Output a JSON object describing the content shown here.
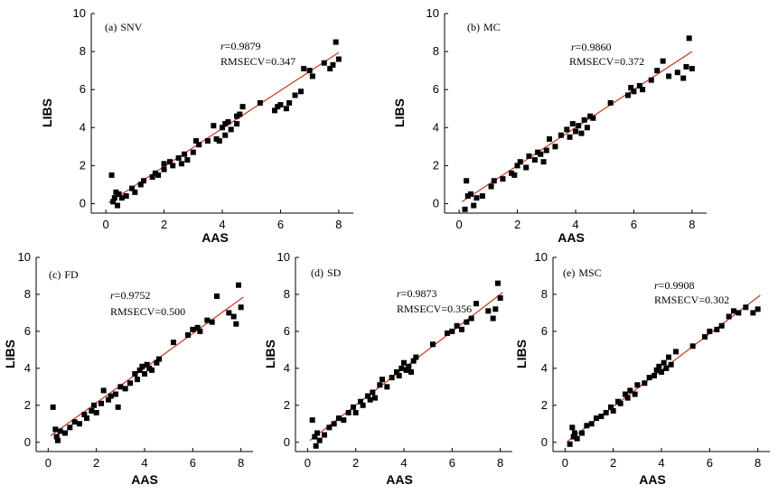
{
  "chart_data": [
    {
      "type": "scatter",
      "panel_label": "(a)",
      "method": "SNV",
      "r_prefix": "r",
      "r_value": "=0.9879",
      "rmsecv": "RMSECV=0.347",
      "xlabel": "AAS",
      "ylabel": "LIBS",
      "xlim": [
        -0.5,
        8.5
      ],
      "ylim": [
        -0.5,
        10
      ],
      "xticks": [
        "0",
        "2",
        "4",
        "6",
        "8"
      ],
      "yticks": [
        "0",
        "2",
        "4",
        "6",
        "8",
        "10"
      ],
      "fit_line": {
        "x": [
          0.1,
          8.0
        ],
        "y": [
          0.05,
          7.95
        ],
        "color": "#d0311f"
      },
      "points": [
        [
          0.2,
          1.5
        ],
        [
          0.25,
          0.1
        ],
        [
          0.3,
          0.3
        ],
        [
          0.35,
          0.6
        ],
        [
          0.4,
          -0.1
        ],
        [
          0.45,
          0.5
        ],
        [
          0.55,
          0.3
        ],
        [
          0.7,
          0.4
        ],
        [
          0.9,
          0.8
        ],
        [
          1.0,
          0.6
        ],
        [
          1.2,
          1.0
        ],
        [
          1.3,
          1.2
        ],
        [
          1.6,
          1.4
        ],
        [
          1.7,
          1.6
        ],
        [
          1.8,
          1.5
        ],
        [
          2.0,
          1.8
        ],
        [
          2.0,
          2.1
        ],
        [
          2.2,
          2.2
        ],
        [
          2.3,
          2.0
        ],
        [
          2.5,
          2.4
        ],
        [
          2.6,
          2.1
        ],
        [
          2.7,
          2.6
        ],
        [
          2.8,
          2.3
        ],
        [
          3.0,
          2.7
        ],
        [
          3.1,
          3.3
        ],
        [
          3.2,
          3.1
        ],
        [
          3.5,
          3.3
        ],
        [
          3.7,
          4.1
        ],
        [
          3.8,
          3.4
        ],
        [
          3.9,
          3.3
        ],
        [
          4.0,
          4.0
        ],
        [
          4.1,
          4.2
        ],
        [
          4.1,
          3.6
        ],
        [
          4.2,
          4.3
        ],
        [
          4.3,
          3.9
        ],
        [
          4.5,
          4.2
        ],
        [
          4.5,
          4.6
        ],
        [
          4.6,
          4.7
        ],
        [
          4.7,
          5.1
        ],
        [
          5.3,
          5.3
        ],
        [
          5.8,
          4.9
        ],
        [
          5.9,
          5.1
        ],
        [
          6.0,
          5.2
        ],
        [
          6.2,
          5.0
        ],
        [
          6.3,
          5.3
        ],
        [
          6.5,
          5.7
        ],
        [
          6.7,
          5.9
        ],
        [
          6.8,
          7.1
        ],
        [
          7.0,
          7.0
        ],
        [
          7.1,
          6.7
        ],
        [
          7.5,
          7.4
        ],
        [
          7.7,
          7.1
        ],
        [
          7.8,
          7.3
        ],
        [
          7.9,
          8.5
        ],
        [
          8.0,
          7.6
        ]
      ]
    },
    {
      "type": "scatter",
      "panel_label": "(b)",
      "method": "MC",
      "r_prefix": "r",
      "r_value": "=0.9860",
      "rmsecv": "RMSECV=0.372",
      "xlabel": "AAS",
      "ylabel": "LIBS",
      "xlim": [
        -0.5,
        8.5
      ],
      "ylim": [
        -0.5,
        10
      ],
      "xticks": [
        "0",
        "2",
        "4",
        "6",
        "8"
      ],
      "yticks": [
        "0",
        "2",
        "4",
        "6",
        "8",
        "10"
      ],
      "fit_line": {
        "x": [
          0.1,
          8.0
        ],
        "y": [
          0.1,
          8.0
        ],
        "color": "#d0311f"
      },
      "points": [
        [
          0.2,
          -0.3
        ],
        [
          0.25,
          1.2
        ],
        [
          0.3,
          0.4
        ],
        [
          0.4,
          0.5
        ],
        [
          0.5,
          -0.1
        ],
        [
          0.6,
          0.3
        ],
        [
          0.8,
          0.4
        ],
        [
          1.1,
          0.9
        ],
        [
          1.2,
          1.2
        ],
        [
          1.5,
          1.3
        ],
        [
          1.8,
          1.6
        ],
        [
          1.9,
          1.5
        ],
        [
          2.0,
          2.0
        ],
        [
          2.1,
          2.2
        ],
        [
          2.3,
          1.9
        ],
        [
          2.4,
          2.5
        ],
        [
          2.6,
          2.3
        ],
        [
          2.7,
          2.7
        ],
        [
          2.8,
          2.6
        ],
        [
          2.9,
          2.2
        ],
        [
          3.0,
          2.8
        ],
        [
          3.1,
          3.4
        ],
        [
          3.3,
          3.0
        ],
        [
          3.5,
          3.6
        ],
        [
          3.7,
          3.9
        ],
        [
          3.8,
          3.5
        ],
        [
          3.9,
          4.2
        ],
        [
          4.0,
          3.8
        ],
        [
          4.1,
          4.1
        ],
        [
          4.2,
          3.7
        ],
        [
          4.3,
          4.4
        ],
        [
          4.4,
          4.0
        ],
        [
          4.5,
          4.6
        ],
        [
          4.6,
          4.5
        ],
        [
          5.2,
          5.3
        ],
        [
          5.8,
          5.7
        ],
        [
          5.9,
          6.1
        ],
        [
          6.0,
          5.9
        ],
        [
          6.2,
          6.2
        ],
        [
          6.3,
          6.0
        ],
        [
          6.6,
          6.5
        ],
        [
          6.8,
          7.0
        ],
        [
          7.0,
          7.5
        ],
        [
          7.2,
          6.7
        ],
        [
          7.5,
          6.9
        ],
        [
          7.7,
          6.6
        ],
        [
          7.8,
          7.2
        ],
        [
          7.9,
          8.7
        ],
        [
          8.0,
          7.1
        ]
      ]
    },
    {
      "type": "scatter",
      "panel_label": "(c)",
      "method": "FD",
      "r_prefix": "r",
      "r_value": "=0.9752",
      "rmsecv": "RMSECV=0.500",
      "xlabel": "AAS",
      "ylabel": "LIBS",
      "xlim": [
        -0.5,
        8.5
      ],
      "ylim": [
        -0.5,
        10
      ],
      "xticks": [
        "0",
        "2",
        "4",
        "6",
        "8"
      ],
      "yticks": [
        "0",
        "2",
        "4",
        "6",
        "8",
        "10"
      ],
      "fit_line": {
        "x": [
          0.1,
          8.1
        ],
        "y": [
          0.35,
          7.85
        ],
        "color": "#d0311f"
      },
      "points": [
        [
          0.2,
          1.9
        ],
        [
          0.3,
          0.7
        ],
        [
          0.35,
          0.3
        ],
        [
          0.4,
          0.1
        ],
        [
          0.5,
          0.6
        ],
        [
          0.7,
          0.5
        ],
        [
          0.9,
          0.8
        ],
        [
          1.1,
          1.1
        ],
        [
          1.3,
          1.0
        ],
        [
          1.5,
          1.5
        ],
        [
          1.6,
          1.3
        ],
        [
          1.8,
          1.7
        ],
        [
          1.9,
          2.0
        ],
        [
          2.0,
          1.6
        ],
        [
          2.2,
          2.1
        ],
        [
          2.3,
          2.8
        ],
        [
          2.5,
          2.3
        ],
        [
          2.6,
          2.5
        ],
        [
          2.8,
          2.6
        ],
        [
          2.9,
          1.9
        ],
        [
          3.0,
          3.0
        ],
        [
          3.2,
          2.9
        ],
        [
          3.4,
          3.2
        ],
        [
          3.6,
          3.7
        ],
        [
          3.7,
          3.4
        ],
        [
          3.8,
          3.9
        ],
        [
          3.9,
          4.1
        ],
        [
          4.0,
          3.7
        ],
        [
          4.1,
          4.2
        ],
        [
          4.2,
          4.0
        ],
        [
          4.3,
          3.9
        ],
        [
          4.5,
          4.3
        ],
        [
          4.6,
          4.5
        ],
        [
          5.2,
          5.4
        ],
        [
          5.8,
          5.8
        ],
        [
          6.0,
          6.1
        ],
        [
          6.2,
          6.2
        ],
        [
          6.3,
          6.0
        ],
        [
          6.6,
          6.6
        ],
        [
          6.8,
          6.5
        ],
        [
          7.0,
          7.9
        ],
        [
          7.5,
          7.0
        ],
        [
          7.7,
          6.8
        ],
        [
          7.8,
          6.4
        ],
        [
          7.9,
          8.5
        ],
        [
          8.0,
          7.3
        ]
      ]
    },
    {
      "type": "scatter",
      "panel_label": "(d)",
      "method": "SD",
      "r_prefix": "r",
      "r_value": "=0.9873",
      "rmsecv": "RMSECV=0.356",
      "xlabel": "AAS",
      "ylabel": "LIBS",
      "xlim": [
        -0.5,
        8.5
      ],
      "ylim": [
        -0.5,
        10
      ],
      "xticks": [
        "0",
        "2",
        "4",
        "6",
        "8"
      ],
      "yticks": [
        "0",
        "2",
        "4",
        "6",
        "8",
        "10"
      ],
      "fit_line": {
        "x": [
          0.1,
          8.1
        ],
        "y": [
          0.1,
          8.1
        ],
        "color": "#d0311f"
      },
      "points": [
        [
          0.2,
          1.2
        ],
        [
          0.3,
          0.3
        ],
        [
          0.35,
          -0.2
        ],
        [
          0.4,
          0.5
        ],
        [
          0.5,
          0.1
        ],
        [
          0.7,
          0.4
        ],
        [
          0.9,
          0.8
        ],
        [
          1.1,
          1.0
        ],
        [
          1.3,
          1.3
        ],
        [
          1.5,
          1.2
        ],
        [
          1.7,
          1.6
        ],
        [
          1.9,
          1.9
        ],
        [
          2.0,
          1.6
        ],
        [
          2.2,
          2.2
        ],
        [
          2.3,
          2.0
        ],
        [
          2.5,
          2.5
        ],
        [
          2.6,
          2.3
        ],
        [
          2.7,
          2.7
        ],
        [
          2.8,
          2.4
        ],
        [
          3.0,
          3.1
        ],
        [
          3.1,
          3.4
        ],
        [
          3.3,
          3.0
        ],
        [
          3.5,
          3.5
        ],
        [
          3.7,
          3.8
        ],
        [
          3.8,
          3.6
        ],
        [
          3.9,
          4.0
        ],
        [
          4.0,
          4.3
        ],
        [
          4.1,
          3.9
        ],
        [
          4.2,
          4.1
        ],
        [
          4.3,
          3.8
        ],
        [
          4.4,
          4.4
        ],
        [
          4.5,
          4.6
        ],
        [
          5.2,
          5.3
        ],
        [
          5.8,
          5.9
        ],
        [
          6.0,
          6.0
        ],
        [
          6.2,
          6.3
        ],
        [
          6.4,
          6.1
        ],
        [
          6.6,
          6.5
        ],
        [
          6.8,
          6.7
        ],
        [
          7.0,
          7.5
        ],
        [
          7.5,
          7.1
        ],
        [
          7.7,
          6.7
        ],
        [
          7.8,
          7.2
        ],
        [
          7.9,
          8.6
        ],
        [
          8.0,
          7.8
        ]
      ]
    },
    {
      "type": "scatter",
      "panel_label": "(e)",
      "method": "MSC",
      "r_prefix": "r",
      "r_value": "=0.9908",
      "rmsecv": "RMSECV=0.302",
      "xlabel": "AAS",
      "ylabel": "LIBS",
      "xlim": [
        -0.5,
        8.5
      ],
      "ylim": [
        -0.5,
        10
      ],
      "xticks": [
        "0",
        "2",
        "4",
        "6",
        "8"
      ],
      "yticks": [
        "0",
        "2",
        "4",
        "6",
        "8",
        "10"
      ],
      "fit_line": {
        "x": [
          0.1,
          8.1
        ],
        "y": [
          0.05,
          7.95
        ],
        "color": "#d0311f"
      },
      "points": [
        [
          0.2,
          -0.1
        ],
        [
          0.3,
          0.8
        ],
        [
          0.35,
          0.3
        ],
        [
          0.4,
          0.5
        ],
        [
          0.5,
          0.2
        ],
        [
          0.7,
          0.5
        ],
        [
          0.9,
          0.9
        ],
        [
          1.1,
          1.0
        ],
        [
          1.3,
          1.3
        ],
        [
          1.5,
          1.4
        ],
        [
          1.7,
          1.6
        ],
        [
          1.9,
          1.9
        ],
        [
          2.0,
          1.7
        ],
        [
          2.2,
          2.2
        ],
        [
          2.3,
          2.1
        ],
        [
          2.5,
          2.6
        ],
        [
          2.6,
          2.4
        ],
        [
          2.7,
          2.8
        ],
        [
          2.9,
          2.6
        ],
        [
          3.0,
          3.1
        ],
        [
          3.3,
          3.2
        ],
        [
          3.5,
          3.5
        ],
        [
          3.7,
          3.6
        ],
        [
          3.8,
          3.9
        ],
        [
          3.9,
          4.1
        ],
        [
          4.0,
          3.8
        ],
        [
          4.1,
          4.3
        ],
        [
          4.2,
          4.0
        ],
        [
          4.3,
          4.6
        ],
        [
          4.4,
          4.2
        ],
        [
          4.6,
          4.9
        ],
        [
          5.3,
          5.2
        ],
        [
          5.8,
          5.7
        ],
        [
          6.0,
          6.0
        ],
        [
          6.3,
          6.1
        ],
        [
          6.5,
          6.3
        ],
        [
          6.8,
          6.8
        ],
        [
          7.0,
          7.1
        ],
        [
          7.2,
          7.0
        ],
        [
          7.5,
          7.3
        ],
        [
          7.8,
          7.0
        ],
        [
          8.0,
          7.2
        ]
      ]
    }
  ]
}
